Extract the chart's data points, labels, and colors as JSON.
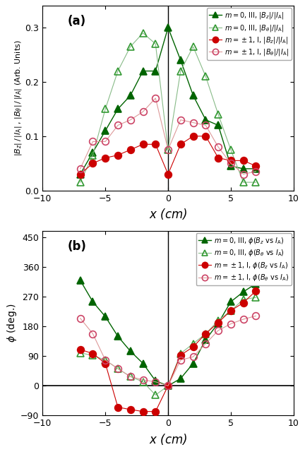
{
  "panel_a": {
    "series": [
      {
        "label": "$m = 0$, III, $|B_z|/|I_{\\rm A}|$",
        "x": [
          -7,
          -6,
          -5,
          -4,
          -3,
          -2,
          -1,
          0,
          1,
          2,
          3,
          4,
          5,
          6,
          7
        ],
        "y": [
          0.03,
          0.07,
          0.11,
          0.15,
          0.175,
          0.22,
          0.22,
          0.3,
          0.24,
          0.175,
          0.13,
          0.12,
          0.045,
          0.04,
          0.04
        ],
        "color": "#006400",
        "marker": "^",
        "fillstyle": "full",
        "linestyle": "-",
        "linewidth": 1.0,
        "markersize": 7,
        "line_color": "#006400"
      },
      {
        "label": "$m = 0$, III, $|B_\\theta|/|I_{\\rm A}|$",
        "x": [
          -7,
          -6,
          -5,
          -4,
          -3,
          -2,
          -1,
          0,
          1,
          2,
          3,
          4,
          5,
          6,
          7
        ],
        "y": [
          0.015,
          0.065,
          0.15,
          0.22,
          0.265,
          0.29,
          0.27,
          0.075,
          0.22,
          0.265,
          0.21,
          0.14,
          0.075,
          0.015,
          0.015
        ],
        "color": "#339933",
        "marker": "^",
        "fillstyle": "none",
        "linestyle": "-",
        "linewidth": 0.8,
        "markersize": 7,
        "line_color": "#88bb88"
      },
      {
        "label": "$m = \\pm1$, I, $|B_z|/|I_{\\rm A}|$",
        "x": [
          -7,
          -6,
          -5,
          -4,
          -3,
          -2,
          -1,
          0,
          1,
          2,
          3,
          4,
          5,
          6,
          7
        ],
        "y": [
          0.03,
          0.05,
          0.06,
          0.065,
          0.075,
          0.085,
          0.085,
          0.03,
          0.085,
          0.1,
          0.1,
          0.06,
          0.055,
          0.055,
          0.045
        ],
        "color": "#CC0000",
        "marker": "o",
        "fillstyle": "full",
        "linestyle": "-",
        "linewidth": 0.8,
        "markersize": 7,
        "line_color": "#CC0000"
      },
      {
        "label": "$m = \\pm1$, I, $|B_\\theta|/|I_{\\rm A}|$",
        "x": [
          -7,
          -6,
          -5,
          -4,
          -3,
          -2,
          -1,
          0,
          1,
          2,
          3,
          4,
          5,
          6,
          7
        ],
        "y": [
          0.04,
          0.09,
          0.09,
          0.12,
          0.13,
          0.145,
          0.17,
          0.075,
          0.13,
          0.125,
          0.12,
          0.08,
          0.05,
          0.03,
          0.035
        ],
        "color": "#CC4466",
        "marker": "o",
        "fillstyle": "none",
        "linestyle": "-",
        "linewidth": 0.8,
        "markersize": 7,
        "line_color": "#dd9999"
      }
    ],
    "ylabel": "$|B_z|\\,/\\,|I_{\\rm A}|\\,,\\,|B_\\theta|\\,/\\,|I_{\\rm A}|$ (Arb. Units)",
    "xlabel": "$x$ (cm)",
    "label": "(a)",
    "xlim": [
      -10,
      10
    ],
    "ylim": [
      0.0,
      0.34
    ],
    "yticks": [
      0.0,
      0.1,
      0.2,
      0.3
    ],
    "xticks": [
      -10,
      -5,
      0,
      5,
      10
    ]
  },
  "panel_b": {
    "series": [
      {
        "label": "$m = 0$, III, $\\phi(B_z$ vs $I_{\\rm A})$",
        "x": [
          -7,
          -6,
          -5,
          -4,
          -3,
          -2,
          -1,
          0,
          1,
          2,
          3,
          4,
          5,
          6,
          7
        ],
        "y": [
          320,
          255,
          210,
          150,
          105,
          68,
          15,
          0,
          22,
          68,
          140,
          190,
          255,
          285,
          310
        ],
        "color": "#006400",
        "marker": "^",
        "fillstyle": "full",
        "linestyle": "-",
        "linewidth": 1.0,
        "markersize": 7,
        "line_color": "#006400"
      },
      {
        "label": "$m = 0$, III, $\\phi(B_\\theta$ vs $I_{\\rm A})$",
        "x": [
          -7,
          -6,
          -5,
          -4,
          -3,
          -2,
          -1,
          0,
          1,
          2,
          3,
          4,
          5,
          6,
          7
        ],
        "y": [
          100,
          92,
          78,
          52,
          28,
          12,
          -28,
          0,
          98,
          128,
          158,
          198,
          228,
          262,
          268
        ],
        "color": "#339933",
        "marker": "^",
        "fillstyle": "none",
        "linestyle": "-",
        "linewidth": 0.8,
        "markersize": 7,
        "line_color": "#88bb88"
      },
      {
        "label": "$m = \\pm1$, I, $\\phi(B_z$ vs $I_{\\rm A})$",
        "x": [
          -7,
          -6,
          -5,
          -4,
          -3,
          -2,
          -1,
          0,
          1,
          2,
          3,
          4,
          5,
          6,
          7
        ],
        "y": [
          110,
          98,
          68,
          -65,
          -72,
          -78,
          -78,
          0,
          93,
          118,
          158,
          192,
          228,
          252,
          288
        ],
        "color": "#CC0000",
        "marker": "o",
        "fillstyle": "full",
        "linestyle": "-",
        "linewidth": 0.8,
        "markersize": 7,
        "line_color": "#CC0000"
      },
      {
        "label": "$m = \\pm1$, I, $\\phi(B_\\theta$ vs $I_{\\rm A})$",
        "x": [
          -7,
          -6,
          -5,
          -4,
          -3,
          -2,
          -1,
          0,
          1,
          2,
          3,
          4,
          5,
          6,
          7
        ],
        "y": [
          205,
          158,
          78,
          52,
          28,
          18,
          12,
          0,
          78,
          88,
          128,
          168,
          188,
          202,
          212
        ],
        "color": "#CC4466",
        "marker": "o",
        "fillstyle": "none",
        "linestyle": "-",
        "linewidth": 0.8,
        "markersize": 7,
        "line_color": "#dd9999"
      }
    ],
    "ylabel": "$\\phi$ (deg.)",
    "xlabel": "$x$ (cm)",
    "label": "(b)",
    "xlim": [
      -10,
      10
    ],
    "ylim": [
      -90,
      470
    ],
    "yticks": [
      -90,
      0,
      90,
      180,
      270,
      360,
      450
    ],
    "xticks": [
      -10,
      -5,
      0,
      5,
      10
    ]
  },
  "background_color": "#ffffff"
}
